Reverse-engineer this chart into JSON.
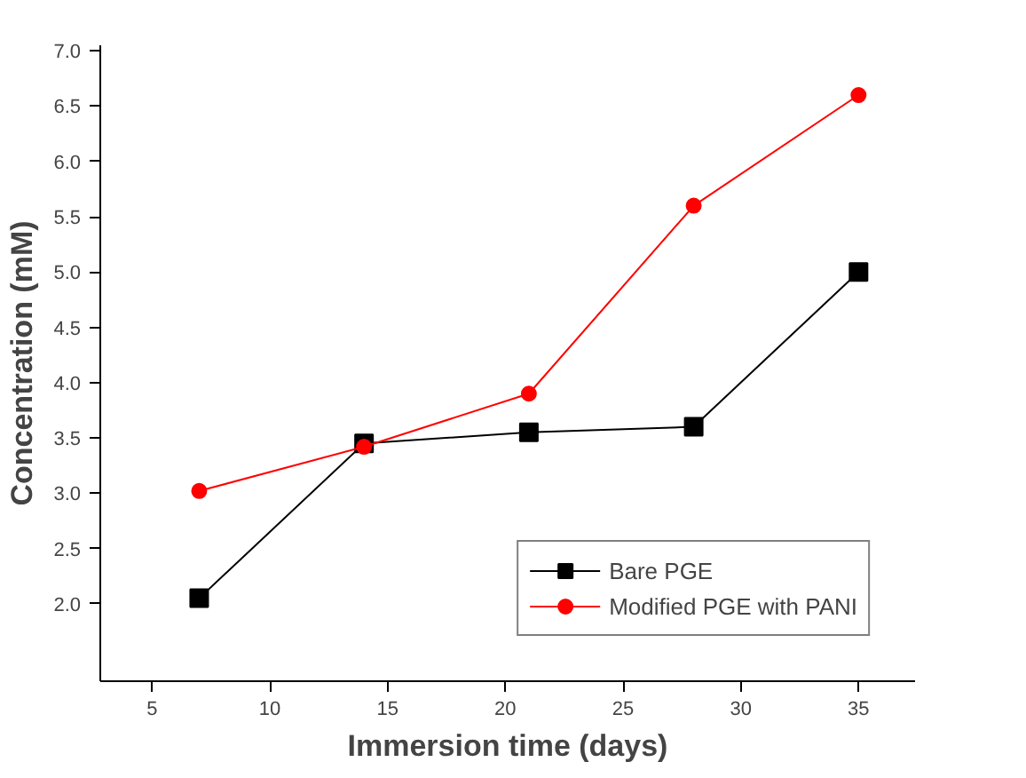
{
  "chart_data": {
    "type": "line",
    "xlabel": "Immersion time (days)",
    "ylabel": "Concentration (mM)",
    "x": [
      7,
      14,
      21,
      28,
      35
    ],
    "series": [
      {
        "name": "Bare PGE",
        "color": "#000000",
        "marker": "square",
        "values": [
          2.05,
          3.45,
          3.55,
          3.6,
          5.0
        ]
      },
      {
        "name": "Modified PGE with PANI",
        "color": "#ff0000",
        "marker": "circle",
        "values": [
          3.02,
          3.42,
          3.9,
          5.6,
          6.6
        ]
      }
    ],
    "xlim": [
      2.8,
      37.4
    ],
    "xticks": [
      5,
      10,
      15,
      20,
      25,
      30,
      35
    ],
    "ylim": [
      1.3,
      7.05
    ],
    "yticks": [
      {
        "value": 2,
        "label": "2.0"
      },
      {
        "value": 2.5,
        "label": "2.5"
      },
      {
        "value": 3,
        "label": "3.0"
      },
      {
        "value": 3.5,
        "label": "3.5"
      },
      {
        "value": 4,
        "label": "4.0"
      },
      {
        "value": 4.5,
        "label": "4.5"
      },
      {
        "value": 5,
        "label": "5.0"
      },
      {
        "value": 5.5,
        "label": "5.5"
      },
      {
        "value": 6,
        "label": "6.0"
      },
      {
        "value": 6.5,
        "label": "6.5"
      },
      {
        "value": 7,
        "label": "7.0"
      }
    ],
    "grid": false,
    "legend": "bottom right",
    "line_style": "solid"
  }
}
